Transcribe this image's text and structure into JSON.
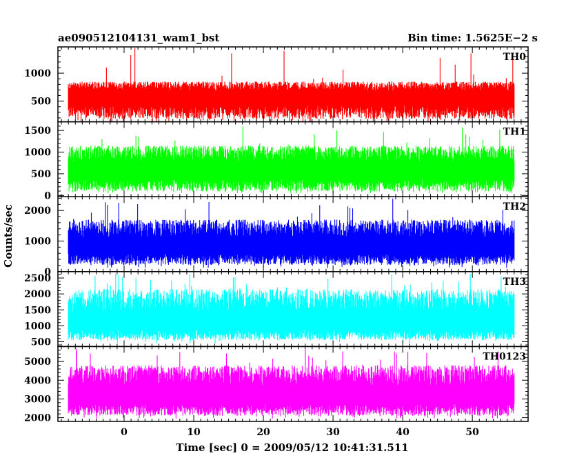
{
  "header": {
    "title": "ae090512104131_wam1_bst",
    "bin_time": "Bin time: 1.5625E−2 s"
  },
  "axes": {
    "xlabel": "Time [sec] 0 = 2009/05/12 10:41:31.511",
    "ylabel": "Counts/sec"
  },
  "chart_data": {
    "type": "line",
    "title": "ae090512104131_wam1_bst",
    "xlabel": "Time [sec] 0 = 2009/05/12 10:41:31.511",
    "ylabel": "Counts/sec",
    "xlim": [
      -9.5,
      58
    ],
    "x_range": [
      -8,
      56
    ],
    "x_ticks": [
      0,
      10,
      20,
      30,
      40,
      50
    ],
    "bin_time_s": 0.015625,
    "grid": false,
    "panels": [
      {
        "name": "TH0",
        "color": "#ff0000",
        "ylim": [
          130,
          1470
        ],
        "y_ticks": [
          500,
          1000
        ],
        "level": 620,
        "noise_low": 180,
        "noise_high": 850,
        "extreme_low": 120,
        "extreme_high": 1470
      },
      {
        "name": "TH1",
        "color": "#00ff00",
        "ylim": [
          -30,
          1700
        ],
        "y_ticks": [
          0,
          500,
          1000,
          1500
        ],
        "level": 610,
        "noise_low": 90,
        "noise_high": 1150,
        "extreme_low": 40,
        "extreme_high": 1600
      },
      {
        "name": "TH2",
        "color": "#0000ff",
        "ylim": [
          0,
          2450
        ],
        "y_ticks": [
          0,
          1000,
          2000
        ],
        "level": 880,
        "noise_low": 220,
        "noise_high": 1700,
        "extreme_low": 120,
        "extreme_high": 2400
      },
      {
        "name": "TH3",
        "color": "#00ffff",
        "ylim": [
          350,
          2700
        ],
        "y_ticks": [
          500,
          1000,
          1500,
          2000,
          2500
        ],
        "level": 1150,
        "noise_low": 550,
        "noise_high": 2150,
        "extreme_low": 450,
        "extreme_high": 2650
      },
      {
        "name": "TH0123",
        "color": "#ff00ff",
        "ylim": [
          1800,
          5800
        ],
        "y_ticks": [
          2000,
          3000,
          4000,
          5000
        ],
        "level": 3250,
        "noise_low": 2100,
        "noise_high": 4800,
        "extreme_low": 1950,
        "extreme_high": 5700
      }
    ]
  }
}
